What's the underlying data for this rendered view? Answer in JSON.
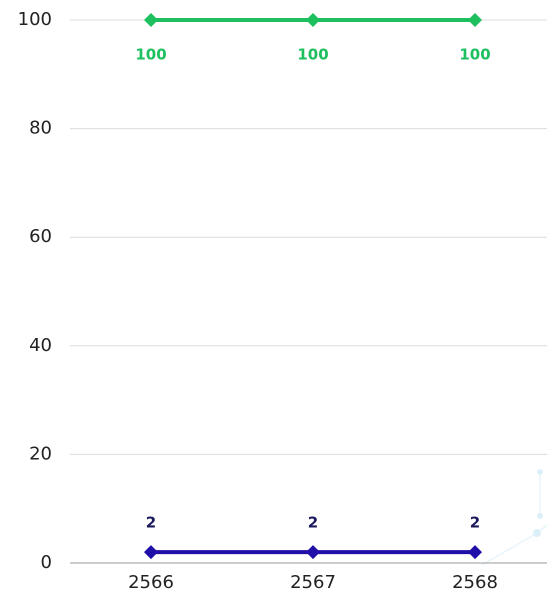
{
  "chart_data": {
    "type": "line",
    "categories": [
      "2566",
      "2567",
      "2568"
    ],
    "series": [
      {
        "color": "#1dbf5e",
        "values": [
          100,
          100,
          100
        ]
      },
      {
        "color": "#1f0ea8",
        "values": [
          2,
          2,
          2
        ]
      }
    ],
    "ylim": [
      0,
      100
    ],
    "yticks": [
      0,
      20,
      40,
      60,
      80,
      100
    ],
    "grid": true
  }
}
